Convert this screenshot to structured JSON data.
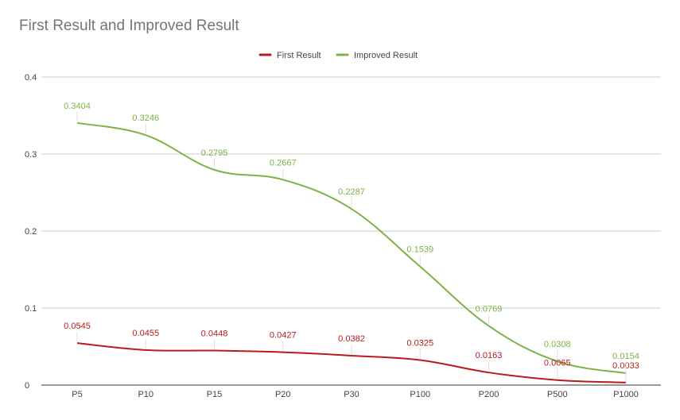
{
  "chart_data": {
    "type": "line",
    "title": "First Result and Improved Result",
    "categories": [
      "P5",
      "P10",
      "P15",
      "P20",
      "P30",
      "P100",
      "P200",
      "P500",
      "P1000"
    ],
    "series": [
      {
        "name": "First Result",
        "color": "#b71c1c",
        "values": [
          0.0545,
          0.0455,
          0.0448,
          0.0427,
          0.0382,
          0.0325,
          0.0163,
          0.0065,
          0.0033
        ],
        "labels": [
          "0.0545",
          "0.0455",
          "0.0448",
          "0.0427",
          "0.0382",
          "0.0325",
          "0.0163",
          "0.0065",
          "0.0033"
        ]
      },
      {
        "name": "Improved Result",
        "color": "#7cb342",
        "values": [
          0.3404,
          0.3246,
          0.2795,
          0.2667,
          0.2287,
          0.1539,
          0.0769,
          0.0308,
          0.0154
        ],
        "labels": [
          "0.3404",
          "0.3246",
          "0.2795",
          "0.2667",
          "0.2287",
          "0.1539",
          "0.0769",
          "0.0308",
          "0.0154"
        ]
      }
    ],
    "ylim": [
      0,
      0.4
    ],
    "yticks": [
      "0",
      "0.1",
      "0.2",
      "0.3",
      "0.4"
    ],
    "ytick_values": [
      0,
      0.1,
      0.2,
      0.3,
      0.4
    ],
    "grid": true,
    "legend_position": "top",
    "smooth": true
  }
}
